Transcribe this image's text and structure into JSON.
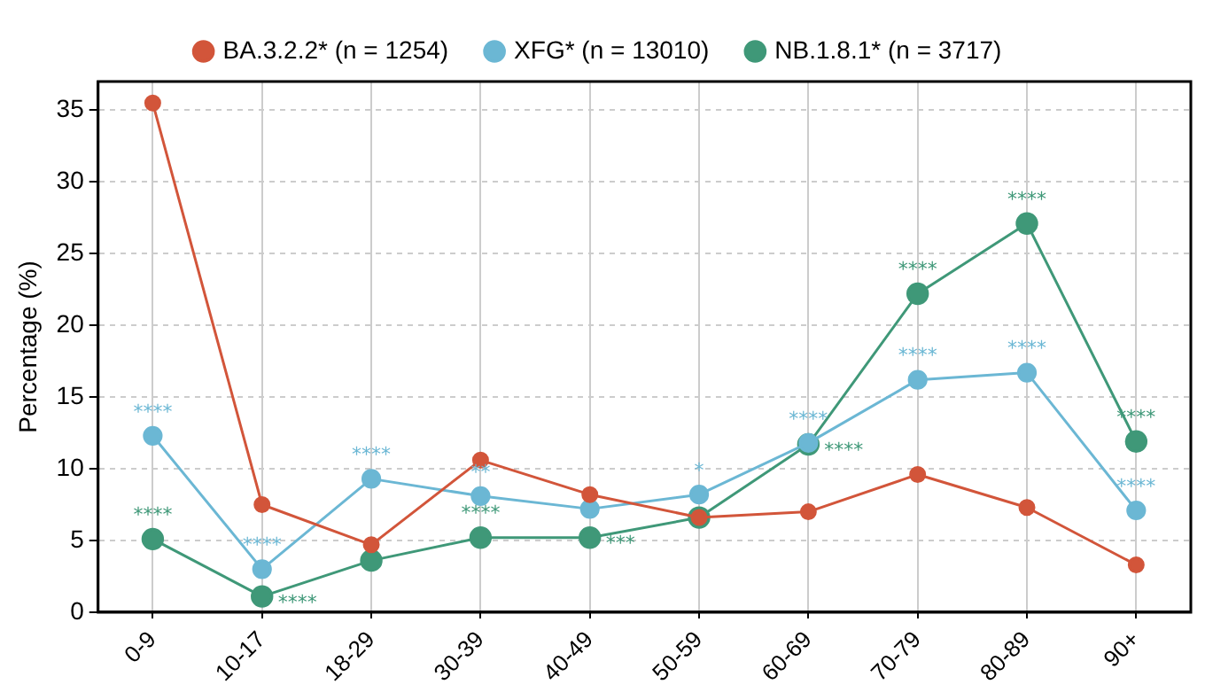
{
  "chart_data": {
    "type": "line",
    "categories": [
      "0-9",
      "10-17",
      "18-29",
      "30-39",
      "40-49",
      "50-59",
      "60-69",
      "70-79",
      "80-89",
      "90+"
    ],
    "series": [
      {
        "name": "BA.3.2.2* (n = 1254)",
        "color": "#d2553a",
        "values": [
          35.5,
          7.5,
          4.7,
          10.6,
          8.2,
          6.6,
          7.0,
          9.6,
          7.3,
          3.3
        ]
      },
      {
        "name": "XFG* (n = 13010)",
        "color": "#6bb7d4",
        "values": [
          12.3,
          3.0,
          9.3,
          8.1,
          7.2,
          8.2,
          11.8,
          16.2,
          16.7,
          7.1
        ]
      },
      {
        "name": "NB.1.8.1* (n = 3717)",
        "color": "#3f9878",
        "values": [
          5.1,
          1.1,
          3.6,
          5.2,
          5.2,
          6.6,
          11.7,
          22.2,
          27.1,
          11.9
        ]
      }
    ],
    "ylabel": "Percentage (%)",
    "ylim": [
      0,
      37
    ],
    "yticks": [
      0,
      5,
      10,
      15,
      20,
      25,
      30,
      35
    ],
    "grid": true,
    "legend": "top",
    "marker": "circle",
    "line_style": "solid",
    "annotations": [
      {
        "text": "****",
        "x": "0-9",
        "y": 12.3
      },
      {
        "text": "****",
        "x": "0-9",
        "y": 5.1
      },
      {
        "text": "****",
        "x": "10-17",
        "y": 3.0
      },
      {
        "text": "****",
        "x": "10-17",
        "y": 1.1
      },
      {
        "text": "****",
        "x": "18-29",
        "y": 9.3
      },
      {
        "text": "**",
        "x": "30-39",
        "y": 8.1
      },
      {
        "text": "****",
        "x": "30-39",
        "y": 5.2
      },
      {
        "text": "***",
        "x": "40-49",
        "y": 5.2
      },
      {
        "text": "*",
        "x": "50-59",
        "y": 8.2
      },
      {
        "text": "****",
        "x": "60-69",
        "y": 11.8
      },
      {
        "text": "****",
        "x": "60-69",
        "y": 11.7
      },
      {
        "text": "****",
        "x": "70-79",
        "y": 22.2
      },
      {
        "text": "****",
        "x": "70-79",
        "y": 16.2
      },
      {
        "text": "****",
        "x": "80-89",
        "y": 27.1
      },
      {
        "text": "****",
        "x": "80-89",
        "y": 16.7
      },
      {
        "text": "****",
        "x": "90+",
        "y": 11.9
      },
      {
        "text": "****",
        "x": "90+",
        "y": 7.1
      }
    ]
  }
}
